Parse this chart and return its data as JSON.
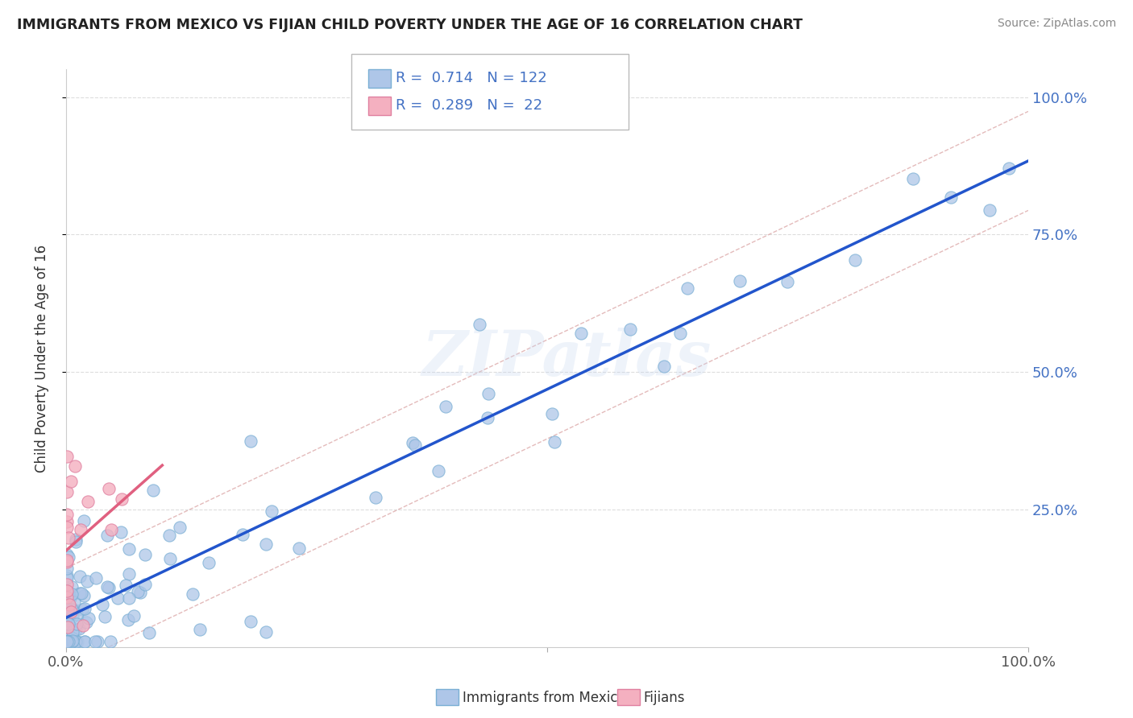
{
  "title": "IMMIGRANTS FROM MEXICO VS FIJIAN CHILD POVERTY UNDER THE AGE OF 16 CORRELATION CHART",
  "source": "Source: ZipAtlas.com",
  "ylabel": "Child Poverty Under the Age of 16",
  "legend_r1": "0.714",
  "legend_n1": "122",
  "legend_r2": "0.289",
  "legend_n2": "22",
  "mexico_dot_color": "#aec6e8",
  "mexico_dot_edge": "#7aafd4",
  "fijian_dot_color": "#f4b0c0",
  "fijian_dot_edge": "#e080a0",
  "mexico_line_color": "#2255cc",
  "fijian_line_color": "#e06080",
  "conf_band_color": "#f0c0cc",
  "watermark": "ZIPatlas",
  "background_color": "#ffffff",
  "ytick_color": "#4472c4",
  "grid_color": "#dddddd"
}
